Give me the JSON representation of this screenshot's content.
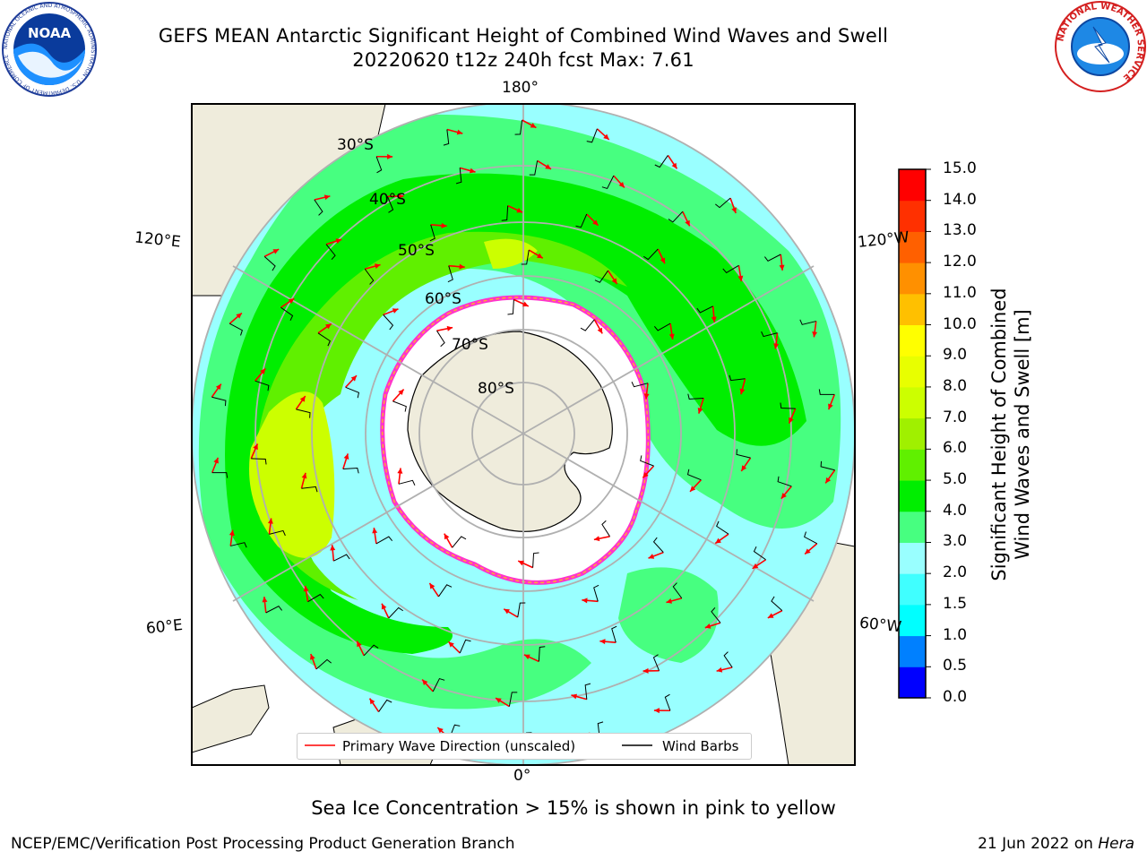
{
  "title_line1": "GEFS MEAN Antarctic Significant Height of Combined Wind Waves and Swell",
  "title_line2": "20220620 t12z 240h fcst   Max: 7.61",
  "map_labels": {
    "lon_top": "180°",
    "lon_bottom": "0°",
    "lon_upper_left": "120°E",
    "lon_upper_right": "120°W",
    "lon_lower_left": "60°E",
    "lon_lower_right": "60°W",
    "lat_30": "30°S",
    "lat_40": "40°S",
    "lat_50": "50°S",
    "lat_60": "60°S",
    "lat_70": "70°S",
    "lat_80": "80°S"
  },
  "legend": {
    "primary_wave": "Primary Wave Direction (unscaled)",
    "wind_barbs": "Wind Barbs",
    "primary_wave_color": "#ff0000",
    "wind_barbs_color": "#000000"
  },
  "colorbar": {
    "label_line1": "Significant Height of Combined",
    "label_line2": "Wind Waves and Swell [m]",
    "ticks": [
      "0.0",
      "0.5",
      "1.0",
      "1.5",
      "2.0",
      "3.0",
      "4.0",
      "5.0",
      "6.0",
      "7.0",
      "8.0",
      "9.0",
      "10.0",
      "11.0",
      "12.0",
      "13.0",
      "14.0",
      "15.0"
    ],
    "colors": [
      "#0000ff",
      "#0080ff",
      "#00ffff",
      "#40ffff",
      "#99ffff",
      "#47ff80",
      "#00ee00",
      "#60f000",
      "#a0f000",
      "#ccff00",
      "#e8ff00",
      "#ffff00",
      "#ffc000",
      "#ff9000",
      "#ff6000",
      "#ff3000",
      "#ff0000"
    ]
  },
  "caption": "Sea Ice Concentration > 15% is shown in pink to yellow",
  "footer_left": "NCEP/EMC/Verification Post Processing Product Generation Branch",
  "footer_right_prefix": "21 Jun 2022 on ",
  "footer_right_host": "Hera",
  "logos": {
    "noaa_text": "NOAA",
    "noaa_ring_text": "NATIONAL OCEANIC AND ATMOSPHERIC ADMINISTRATION · U.S. DEPARTMENT OF COMMERCE",
    "nws_ring_text": "NATIONAL WEATHER SERVICE"
  },
  "colors": {
    "land": "#efecdc",
    "ice_edge": "#ff33cc",
    "grid": "#b0b0b0",
    "arrow": "#ff0000"
  }
}
